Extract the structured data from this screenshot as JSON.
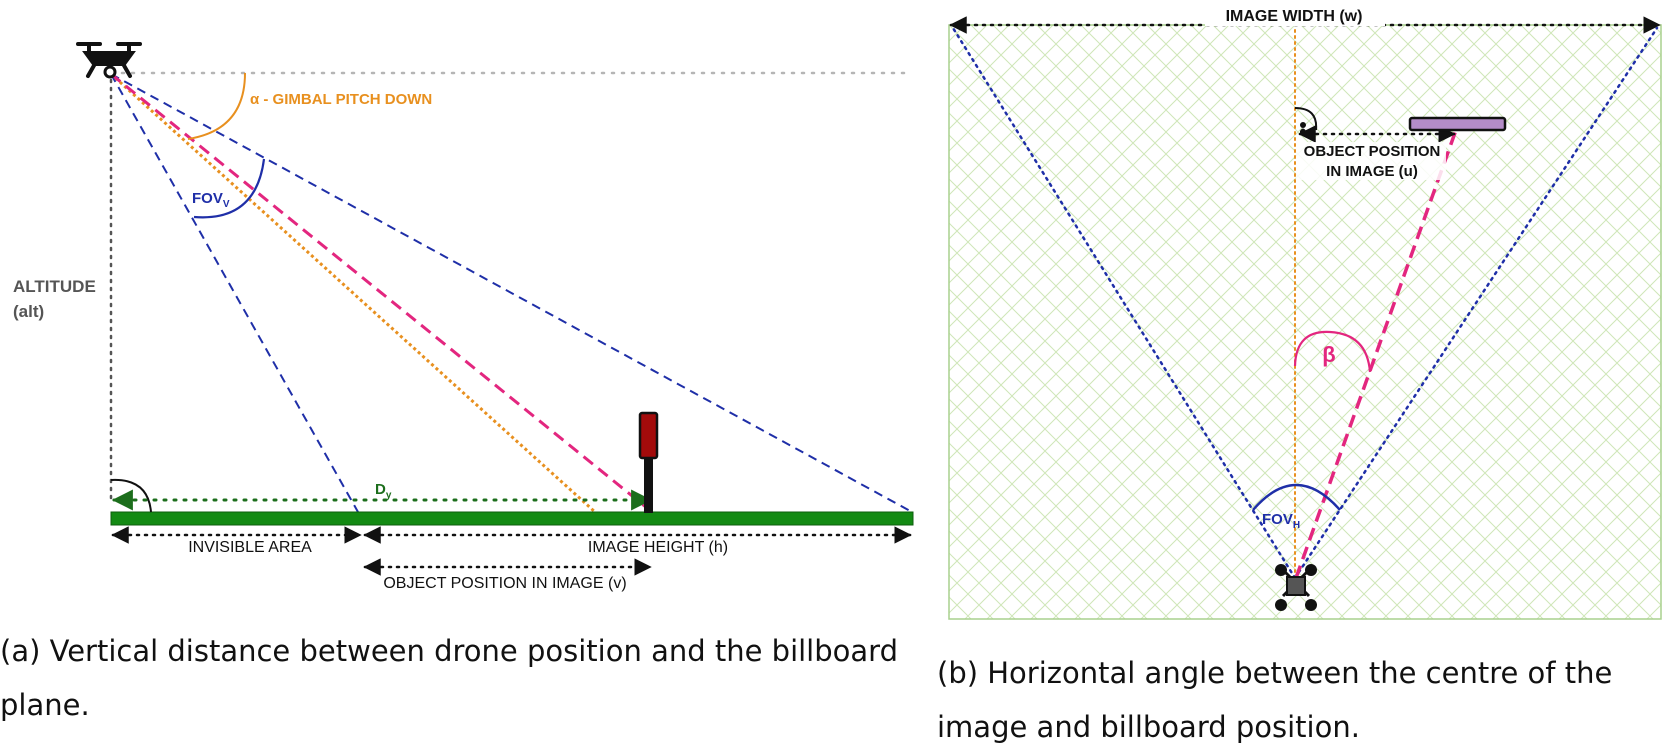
{
  "colors": {
    "blue": "#1f2fa8",
    "orange": "#e8901f",
    "pink": "#e3267f",
    "green": "#138a13",
    "dark_green": "#1c6e1c",
    "gray": "#555555",
    "pole_red": "#a30b0b",
    "billboard_purple": "#b48cc8",
    "grid_green": "#cfe6b8"
  },
  "panel_a": {
    "alpha_label": "α  - GIMBAL PITCH DOWN",
    "fov_v_main": "FOV",
    "fov_v_sub": "V",
    "altitude_label_line1": "ALTITUDE",
    "altitude_label_line2": "(alt)",
    "dy_main": "D",
    "dy_sub": "y",
    "invisible_area_label": "INVISIBLE AREA",
    "image_height_label": "IMAGE HEIGHT (h)",
    "object_position_v_label": "OBJECT POSITION IN IMAGE (v)",
    "icons": [
      "drone-icon",
      "billboard-pole-icon"
    ],
    "caption": "(a) Vertical distance between drone position and the billboard plane."
  },
  "panel_b": {
    "image_width_label": "IMAGE WIDTH (w)",
    "object_position_u_line1": "OBJECT POSITION",
    "object_position_u_line2": "IN IMAGE (u)",
    "beta_label": "β",
    "fov_h_main": "FOV",
    "fov_h_sub": "H",
    "icons": [
      "drone-top-view-icon",
      "billboard-top-view-icon",
      "person-icon"
    ],
    "caption": "(b) Horizontal angle between the centre of the image and billboard position."
  }
}
